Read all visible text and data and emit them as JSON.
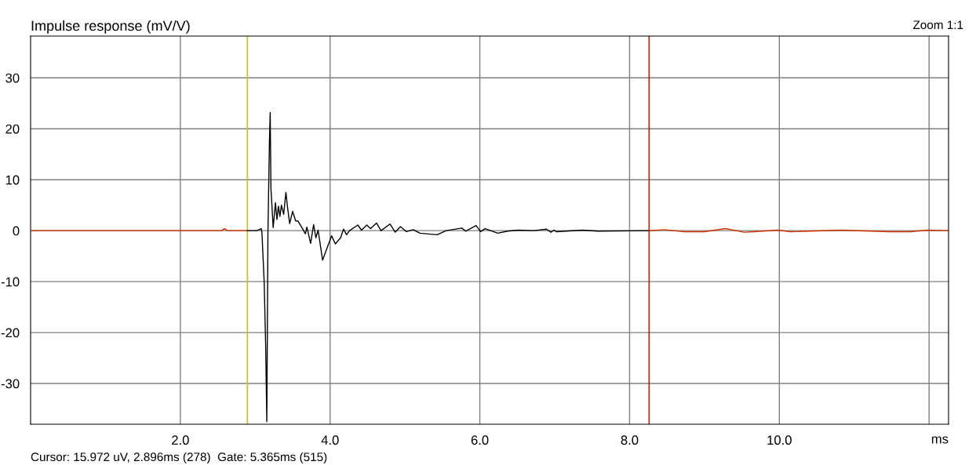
{
  "chart_data": {
    "type": "line",
    "title": "Impulse response (mV/V)",
    "xlabel": "ms",
    "annotations": [
      "Zoom 1:1",
      "Cursor: 15.972 uV, 2.896ms (278)  Gate: 5.365ms (515)"
    ],
    "series": [
      {
        "color": "#d03000",
        "x": [
          0.0,
          2.55,
          2.59,
          2.63,
          2.896
        ],
        "values": [
          0.0,
          0.0,
          0.4,
          0.0,
          0.0
        ]
      },
      {
        "color": "#000000",
        "x": [
          2.896,
          3.02,
          3.08,
          3.09,
          3.12,
          3.14,
          3.155,
          3.17,
          3.19,
          3.2,
          3.21,
          3.24,
          3.27,
          3.29,
          3.31,
          3.33,
          3.35,
          3.38,
          3.41,
          3.43,
          3.46,
          3.5,
          3.54,
          3.57,
          3.62,
          3.67,
          3.69,
          3.74,
          3.78,
          3.81,
          3.84,
          3.9,
          4.02,
          4.07,
          4.14,
          4.18,
          4.22,
          4.26,
          4.37,
          4.42,
          4.49,
          4.54,
          4.62,
          4.68,
          4.8,
          4.87,
          4.94,
          5.02,
          5.11,
          5.2,
          5.43,
          5.55,
          5.76,
          5.81,
          5.95,
          6.01,
          6.07,
          6.24,
          6.37,
          6.51,
          6.72,
          6.89,
          6.95,
          6.99,
          7.02,
          7.37,
          7.58,
          8.261
        ],
        "values": [
          0.0,
          0.0,
          0.4,
          -0.4,
          -10.2,
          -23.0,
          -37.5,
          -0.4,
          17.5,
          23.2,
          8.3,
          0.6,
          5.5,
          2.2,
          4.8,
          2.8,
          5.0,
          3.2,
          7.5,
          4.8,
          1.4,
          3.8,
          1.9,
          1.9,
          0.7,
          -0.6,
          0.7,
          -2.5,
          1.2,
          -1.4,
          0.1,
          -5.8,
          -1.0,
          -2.6,
          -1.4,
          0.3,
          -0.8,
          0.0,
          1.1,
          0.1,
          1.1,
          0.4,
          1.5,
          0.0,
          1.3,
          -0.3,
          0.8,
          -0.2,
          0.2,
          -0.5,
          -0.8,
          0.0,
          0.5,
          -0.1,
          1.0,
          -0.2,
          0.4,
          -0.5,
          -0.1,
          0.1,
          0.0,
          0.3,
          -0.3,
          0.1,
          -0.2,
          0.1,
          -0.1,
          0.0
        ]
      },
      {
        "color": "#d03000",
        "x": [
          8.261,
          8.46,
          8.73,
          9.0,
          9.28,
          9.53,
          9.66,
          9.98,
          10.15,
          10.83,
          11.46,
          11.75,
          11.98,
          12.26
        ],
        "values": [
          0.0,
          0.2,
          -0.2,
          -0.2,
          0.4,
          -0.3,
          -0.2,
          0.1,
          -0.2,
          0.1,
          -0.2,
          -0.2,
          0.1,
          0.0
        ]
      }
    ],
    "xlim": [
      0,
      12.26
    ],
    "ylim": [
      -38,
      38.2
    ],
    "xticks": [
      {
        "value": 2,
        "label": "2.0"
      },
      {
        "value": 4,
        "label": "4.0"
      },
      {
        "value": 6,
        "label": "6.0"
      },
      {
        "value": 8,
        "label": "8.0"
      },
      {
        "value": 10,
        "label": "10.0"
      },
      {
        "value": 12,
        "label": null
      }
    ],
    "yticks": [
      -30,
      -20,
      -10,
      0,
      10,
      20,
      30
    ],
    "ref_lines": [
      {
        "axis": "x",
        "value": 2.896,
        "color": "#c8c800"
      },
      {
        "axis": "x",
        "value": 8.261,
        "color": "#c02000"
      }
    ],
    "grid": true
  }
}
